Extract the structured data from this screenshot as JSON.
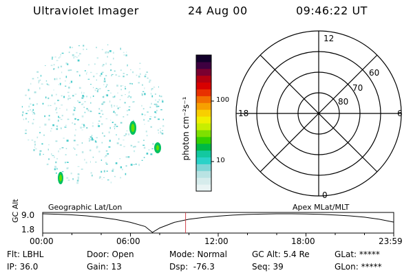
{
  "header": {
    "instrument": "Ultraviolet Imager",
    "date": "24 Aug 00",
    "time": "09:46:22 UT"
  },
  "colorbar": {
    "unit_label": "photon cm⁻²s⁻¹",
    "ticks": [
      "100",
      "10"
    ],
    "colors": [
      "#e9f4f4",
      "#d6ecec",
      "#b9e3e3",
      "#7fd6d6",
      "#2ad2c8",
      "#13c8a0",
      "#00b845",
      "#33d000",
      "#7ee000",
      "#c8ee00",
      "#f0f000",
      "#f8cf00",
      "#f7a000",
      "#f27000",
      "#e83000",
      "#d80000",
      "#b40010",
      "#7a0030",
      "#3e0040",
      "#12002a"
    ]
  },
  "polar_plot": {
    "mlt_labels": {
      "top": "12",
      "left": "18",
      "right": "6",
      "bottom": "0"
    },
    "lat_labels": [
      "60",
      "70",
      "80"
    ]
  },
  "timeline": {
    "ylabel": "GC Alt",
    "y_ticks": [
      "9.0",
      "1.8"
    ],
    "left_label": "Geographic Lat/Lon",
    "right_label": "Apex MLat/MLT",
    "x_ticks": [
      "00:00",
      "06:00",
      "12:00",
      "18:00",
      "23:59"
    ]
  },
  "chart_data": {
    "type": "line",
    "ylabel": "GC Alt",
    "ylim": [
      1.8,
      9.0
    ],
    "x_hours": [
      0,
      1,
      2,
      3,
      4,
      5,
      6,
      7,
      7.5,
      8,
      9,
      10,
      11,
      12,
      13,
      14,
      15,
      16,
      17,
      18,
      19,
      20,
      21,
      22,
      23,
      23.98
    ],
    "y_values": [
      9.0,
      8.85,
      8.6,
      8.2,
      7.6,
      6.8,
      5.7,
      4.1,
      1.8,
      3.5,
      5.7,
      6.9,
      7.6,
      8.1,
      8.5,
      8.75,
      8.9,
      9.0,
      9.0,
      8.95,
      8.8,
      8.55,
      8.2,
      7.7,
      6.9,
      5.8
    ],
    "current_time_hours": 9.77
  },
  "status": {
    "filter": "Flt: LBHL",
    "door": "Door: Open",
    "mode": "Mode: Normal",
    "gc_alt": "GC Alt: 5.4 Re",
    "glat": "GLat: *****",
    "ip": "IP: 36.0",
    "gain": "Gain: 13",
    "dsp": "Dsp:  -76.3",
    "seq": "Seq: 39",
    "glon": "GLon: *****"
  }
}
